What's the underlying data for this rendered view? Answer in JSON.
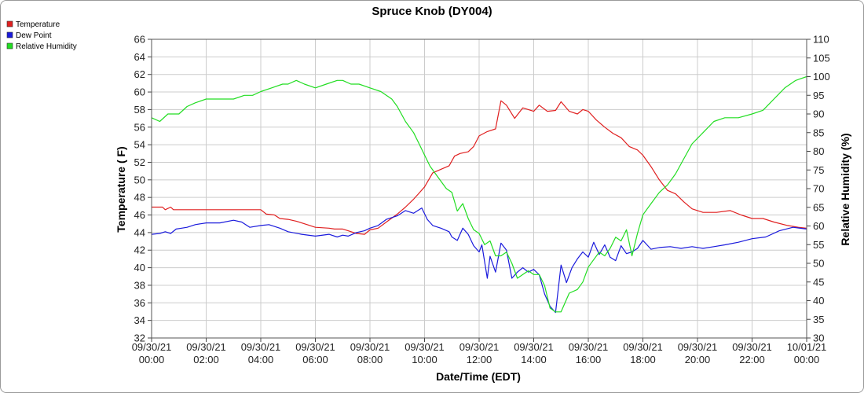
{
  "chart_data": {
    "type": "line",
    "title": "Spruce Knob (DY004)",
    "xlabel": "Date/Time (EDT)",
    "ylabel_left": "Temperature ( F)",
    "ylabel_right": "Relative Humidity (%)",
    "ylim_left": [
      32,
      66
    ],
    "ylim_right": [
      30,
      110
    ],
    "grid": true,
    "legend_placement": "top-left",
    "x_ticks": [
      {
        "hour": 0,
        "line1": "09/30/21",
        "line2": "00:00"
      },
      {
        "hour": 2,
        "line1": "09/30/21",
        "line2": "02:00"
      },
      {
        "hour": 4,
        "line1": "09/30/21",
        "line2": "04:00"
      },
      {
        "hour": 6,
        "line1": "09/30/21",
        "line2": "06:00"
      },
      {
        "hour": 8,
        "line1": "09/30/21",
        "line2": "08:00"
      },
      {
        "hour": 10,
        "line1": "09/30/21",
        "line2": "10:00"
      },
      {
        "hour": 12,
        "line1": "09/30/21",
        "line2": "12:00"
      },
      {
        "hour": 14,
        "line1": "09/30/21",
        "line2": "14:00"
      },
      {
        "hour": 16,
        "line1": "09/30/21",
        "line2": "16:00"
      },
      {
        "hour": 18,
        "line1": "09/30/21",
        "line2": "18:00"
      },
      {
        "hour": 20,
        "line1": "09/30/21",
        "line2": "20:00"
      },
      {
        "hour": 22,
        "line1": "09/30/21",
        "line2": "22:00"
      },
      {
        "hour": 24,
        "line1": "10/01/21",
        "line2": "00:00"
      }
    ],
    "y_ticks_left": [
      32,
      34,
      36,
      38,
      40,
      42,
      44,
      46,
      48,
      50,
      52,
      54,
      56,
      58,
      60,
      62,
      64,
      66
    ],
    "y_ticks_right": [
      30,
      35,
      40,
      45,
      50,
      55,
      60,
      65,
      70,
      75,
      80,
      85,
      90,
      95,
      100,
      105,
      110
    ],
    "series": [
      {
        "name": "Temperature",
        "color": "#e02020",
        "axis": "left",
        "x": [
          0,
          0.4,
          0.5,
          0.7,
          0.8,
          1.0,
          2.0,
          3.0,
          4.0,
          4.2,
          4.5,
          4.7,
          5.0,
          5.3,
          5.7,
          6.0,
          6.5,
          6.7,
          7.0,
          7.2,
          7.5,
          7.8,
          8.0,
          8.3,
          8.6,
          9.0,
          9.3,
          9.6,
          9.8,
          10.0,
          10.3,
          10.6,
          10.9,
          11.1,
          11.3,
          11.6,
          11.8,
          12.0,
          12.3,
          12.6,
          12.8,
          13.0,
          13.3,
          13.6,
          13.8,
          14.0,
          14.2,
          14.5,
          14.8,
          15.0,
          15.3,
          15.6,
          15.8,
          16.0,
          16.3,
          16.6,
          16.9,
          17.2,
          17.5,
          17.8,
          18.0,
          18.3,
          18.6,
          18.9,
          19.2,
          19.5,
          19.8,
          20.2,
          20.7,
          21.2,
          21.6,
          22.0,
          22.4,
          22.8,
          23.3,
          23.7,
          24.0
        ],
        "values": [
          46.9,
          46.9,
          46.6,
          46.9,
          46.6,
          46.6,
          46.6,
          46.6,
          46.6,
          46.1,
          46.0,
          45.6,
          45.5,
          45.3,
          44.9,
          44.6,
          44.5,
          44.4,
          44.4,
          44.2,
          43.9,
          43.8,
          44.3,
          44.5,
          45.2,
          46.1,
          46.9,
          47.8,
          48.5,
          49.2,
          50.8,
          51.2,
          51.6,
          52.7,
          53.0,
          53.2,
          53.8,
          55.0,
          55.5,
          55.8,
          59.0,
          58.5,
          57.0,
          58.2,
          58.0,
          57.8,
          58.5,
          57.8,
          57.9,
          58.9,
          57.8,
          57.5,
          58.0,
          57.8,
          56.8,
          56.0,
          55.3,
          54.8,
          53.8,
          53.4,
          52.8,
          51.5,
          50.0,
          48.8,
          48.4,
          47.5,
          46.7,
          46.3,
          46.3,
          46.5,
          46.0,
          45.6,
          45.6,
          45.2,
          44.8,
          44.6,
          44.5
        ]
      },
      {
        "name": "Dew Point",
        "color": "#1a1adc",
        "axis": "left",
        "x": [
          0,
          0.3,
          0.5,
          0.7,
          0.9,
          1.1,
          1.3,
          1.6,
          2.0,
          2.5,
          3.0,
          3.3,
          3.6,
          4.0,
          4.3,
          4.7,
          5.0,
          5.5,
          6.0,
          6.5,
          6.8,
          7.0,
          7.2,
          7.5,
          7.8,
          8.0,
          8.3,
          8.6,
          9.0,
          9.3,
          9.6,
          9.9,
          10.1,
          10.3,
          10.6,
          10.9,
          11.0,
          11.2,
          11.4,
          11.6,
          11.8,
          12.0,
          12.1,
          12.3,
          12.4,
          12.6,
          12.8,
          13.0,
          13.2,
          13.4,
          13.6,
          13.8,
          14.0,
          14.2,
          14.4,
          14.6,
          14.8,
          15.0,
          15.2,
          15.4,
          15.6,
          15.8,
          16.0,
          16.2,
          16.4,
          16.6,
          16.8,
          17.0,
          17.2,
          17.4,
          17.6,
          17.8,
          18.0,
          18.3,
          18.6,
          19.0,
          19.4,
          19.8,
          20.2,
          20.6,
          21.0,
          21.5,
          22.0,
          22.5,
          23.0,
          23.5,
          24.0
        ],
        "values": [
          43.8,
          43.9,
          44.1,
          43.9,
          44.4,
          44.5,
          44.6,
          44.9,
          45.1,
          45.1,
          45.4,
          45.2,
          44.6,
          44.8,
          44.9,
          44.5,
          44.1,
          43.8,
          43.6,
          43.8,
          43.5,
          43.7,
          43.6,
          44.0,
          44.2,
          44.5,
          44.8,
          45.5,
          45.9,
          46.5,
          46.2,
          46.8,
          45.5,
          44.8,
          44.5,
          44.1,
          43.5,
          43.1,
          44.5,
          43.8,
          42.5,
          41.8,
          42.6,
          38.8,
          41.3,
          39.5,
          42.8,
          42.0,
          38.8,
          39.5,
          40.0,
          39.5,
          39.8,
          39.2,
          37.0,
          35.6,
          34.9,
          40.3,
          38.3,
          40.0,
          41.0,
          41.8,
          41.2,
          42.9,
          41.5,
          42.6,
          41.2,
          40.8,
          42.5,
          41.6,
          41.8,
          42.2,
          43.1,
          42.1,
          42.3,
          42.4,
          42.2,
          42.4,
          42.2,
          42.4,
          42.6,
          42.9,
          43.3,
          43.5,
          44.2,
          44.6,
          44.4
        ]
      },
      {
        "name": "Relative Humidity",
        "color": "#22dd22",
        "axis": "right",
        "x": [
          0,
          0.3,
          0.6,
          1.0,
          1.3,
          1.6,
          2.0,
          2.5,
          3.0,
          3.4,
          3.7,
          4.0,
          4.4,
          4.8,
          5.0,
          5.3,
          5.6,
          6.0,
          6.4,
          6.8,
          7.0,
          7.3,
          7.6,
          8.0,
          8.4,
          8.8,
          9.0,
          9.3,
          9.6,
          9.8,
          10.0,
          10.2,
          10.4,
          10.6,
          10.8,
          11.0,
          11.2,
          11.4,
          11.6,
          11.8,
          12.0,
          12.2,
          12.4,
          12.6,
          12.8,
          13.0,
          13.2,
          13.4,
          13.6,
          13.8,
          14.0,
          14.2,
          14.4,
          14.6,
          14.8,
          15.0,
          15.3,
          15.6,
          15.8,
          16.0,
          16.2,
          16.4,
          16.6,
          16.8,
          17.0,
          17.2,
          17.4,
          17.6,
          17.8,
          18.0,
          18.3,
          18.6,
          18.9,
          19.2,
          19.5,
          19.8,
          20.2,
          20.6,
          21.0,
          21.5,
          22.0,
          22.4,
          22.8,
          23.2,
          23.6,
          24.0
        ],
        "values": [
          89,
          88,
          90,
          90,
          92,
          93,
          94,
          94,
          94,
          95,
          95,
          96,
          97,
          98,
          98,
          99,
          98,
          97,
          98,
          99,
          99,
          98,
          98,
          97,
          96,
          94,
          92,
          88,
          85,
          82,
          79,
          76,
          74,
          72,
          70,
          69,
          64,
          66,
          62,
          59,
          58,
          55,
          56,
          52,
          52,
          53,
          50,
          46,
          47,
          48,
          47,
          47,
          44,
          38,
          37,
          37,
          42,
          43,
          45,
          49,
          51,
          53,
          52,
          54,
          57,
          56,
          59,
          52,
          58,
          63,
          66,
          69,
          71,
          74,
          78,
          82,
          85,
          88,
          89,
          89,
          90,
          91,
          94,
          97,
          99,
          100
        ]
      }
    ]
  }
}
